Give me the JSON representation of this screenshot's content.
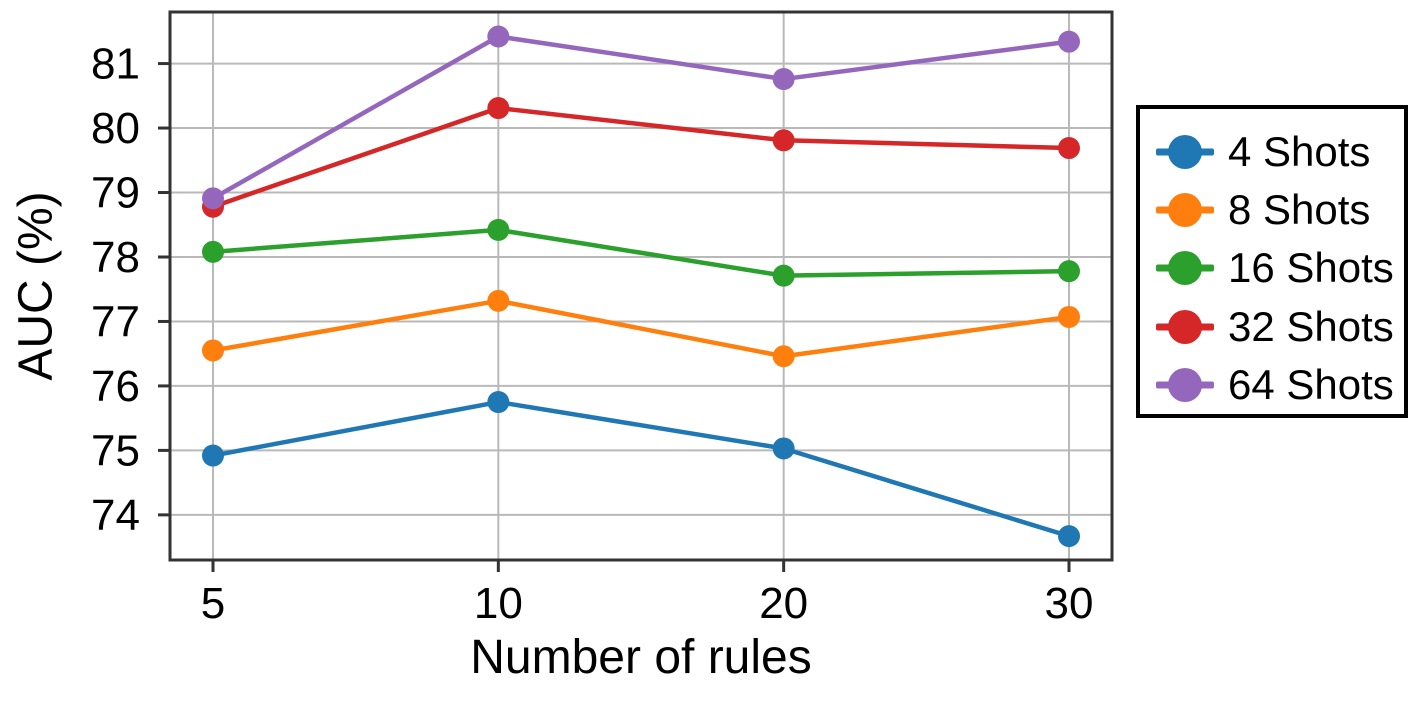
{
  "chart_data": {
    "type": "line",
    "title": "",
    "xlabel": "Number of rules",
    "ylabel": "AUC (%)",
    "x_tick_labels": [
      "5",
      "10",
      "20",
      "30"
    ],
    "x_values": [
      5,
      10,
      20,
      30
    ],
    "y_ticks": [
      74,
      75,
      76,
      77,
      78,
      79,
      80,
      81
    ],
    "ylim": [
      73.3,
      81.8
    ],
    "grid": true,
    "legend_position": "outside-right",
    "series": [
      {
        "name": "4 Shots",
        "color": "#1f77b4",
        "values": [
          74.92,
          75.75,
          75.03,
          73.67
        ]
      },
      {
        "name": "8 Shots",
        "color": "#ff7f0e",
        "values": [
          76.55,
          77.32,
          76.46,
          77.07
        ]
      },
      {
        "name": "16 Shots",
        "color": "#2ca02c",
        "values": [
          78.08,
          78.42,
          77.71,
          77.78
        ]
      },
      {
        "name": "32 Shots",
        "color": "#d62728",
        "values": [
          78.78,
          80.31,
          79.81,
          79.69
        ]
      },
      {
        "name": "64 Shots",
        "color": "#9467bd",
        "values": [
          78.91,
          81.42,
          80.76,
          81.34
        ]
      }
    ]
  },
  "style": {
    "grid_color": "#b9b9b9",
    "frame_color": "#333333",
    "tick_color": "#333333",
    "text_color": "#000000",
    "background": "#ffffff",
    "legend_border_color": "#000000"
  }
}
